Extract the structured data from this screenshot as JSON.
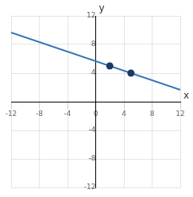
{
  "chart_data": {
    "type": "scatter",
    "xlabel": "x",
    "ylabel": "y",
    "series": [
      {
        "type": "line",
        "color": "#2e75b6",
        "x": [
          -12,
          12
        ],
        "values": [
          9.666666666666668,
          1.666666666666667
        ]
      },
      {
        "type": "scatter",
        "color": "#1f3864",
        "x": [
          2,
          5
        ],
        "values": [
          5,
          4
        ]
      }
    ],
    "xlim": [
      -12,
      12
    ],
    "ylim": [
      -12,
      12
    ],
    "xticks": [
      -12,
      -8,
      -4,
      0,
      4,
      8,
      12
    ],
    "yticks": [
      -12,
      -8,
      -4,
      4,
      8,
      12
    ],
    "grid": true
  }
}
